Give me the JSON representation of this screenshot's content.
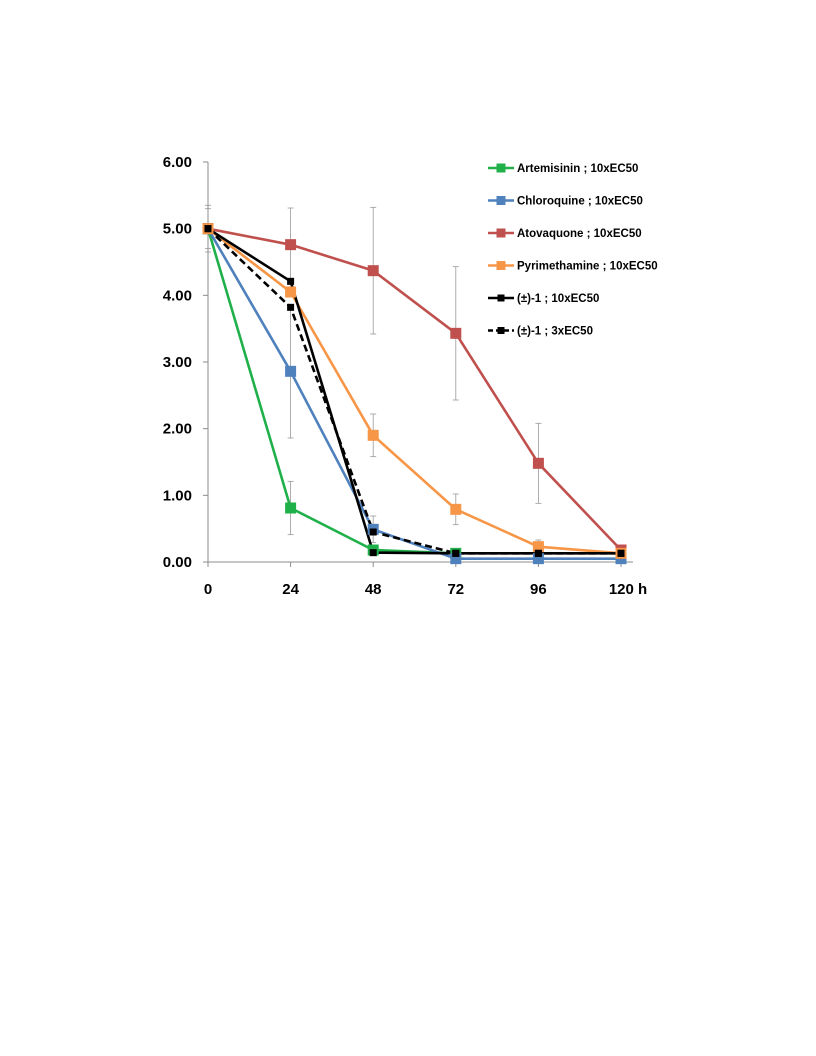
{
  "chart_data": {
    "type": "line",
    "title": "",
    "xlabel": "",
    "ylabel": "",
    "x": [
      0,
      24,
      48,
      72,
      96,
      120
    ],
    "x_tick_labels": [
      "0",
      "24",
      "48",
      "72",
      "96",
      "120 h"
    ],
    "y_tick_labels": [
      "0.00",
      "1.00",
      "2.00",
      "3.00",
      "4.00",
      "5.00",
      "6.00"
    ],
    "xlim": [
      0,
      120
    ],
    "ylim": [
      0,
      6
    ],
    "grid": false,
    "legend_position": "top-right",
    "series": [
      {
        "name": "Artemisinin ; 10xEC50",
        "color": "#20B04A",
        "dash": false,
        "marker": "square-large",
        "values": [
          5.0,
          0.81,
          0.18,
          0.13,
          null,
          null
        ],
        "error": [
          0,
          0.4,
          0,
          0.05,
          null,
          null
        ]
      },
      {
        "name": "Chloroquine ; 10xEC50",
        "color": "#4F81BD",
        "dash": false,
        "marker": "square-large",
        "values": [
          5.0,
          2.86,
          0.49,
          0.05,
          0.05,
          0.05
        ],
        "error": [
          0.35,
          1.0,
          0.2,
          0,
          0,
          0
        ]
      },
      {
        "name": "Atovaquone ; 10xEC50",
        "color": "#C0504D",
        "dash": false,
        "marker": "square-large",
        "values": [
          5.0,
          4.76,
          4.37,
          3.43,
          1.48,
          0.18
        ],
        "error": [
          0.3,
          0.55,
          0.95,
          1.0,
          0.6,
          0
        ]
      },
      {
        "name": "Pyrimethamine ; 10xEC50",
        "color": "#F79646",
        "dash": false,
        "marker": "square-large",
        "values": [
          5.0,
          4.05,
          1.9,
          0.79,
          0.23,
          0.13
        ],
        "error": [
          0,
          0,
          0.32,
          0.23,
          0.1,
          0
        ]
      },
      {
        "name": "(±)-1 ; 10xEC50",
        "color": "#000000",
        "dash": false,
        "marker": "square-small",
        "values": [
          5.0,
          4.21,
          0.14,
          0.13,
          0.13,
          0.13
        ],
        "error": [
          0,
          0,
          0,
          0,
          0,
          0
        ]
      },
      {
        "name": "(±)-1 ; 3xEC50",
        "color": "#000000",
        "dash": true,
        "marker": "square-small",
        "values": [
          5.0,
          3.82,
          0.45,
          0.13,
          0.13,
          0.13
        ],
        "error": [
          0,
          0,
          0,
          0,
          0,
          0
        ]
      }
    ]
  }
}
